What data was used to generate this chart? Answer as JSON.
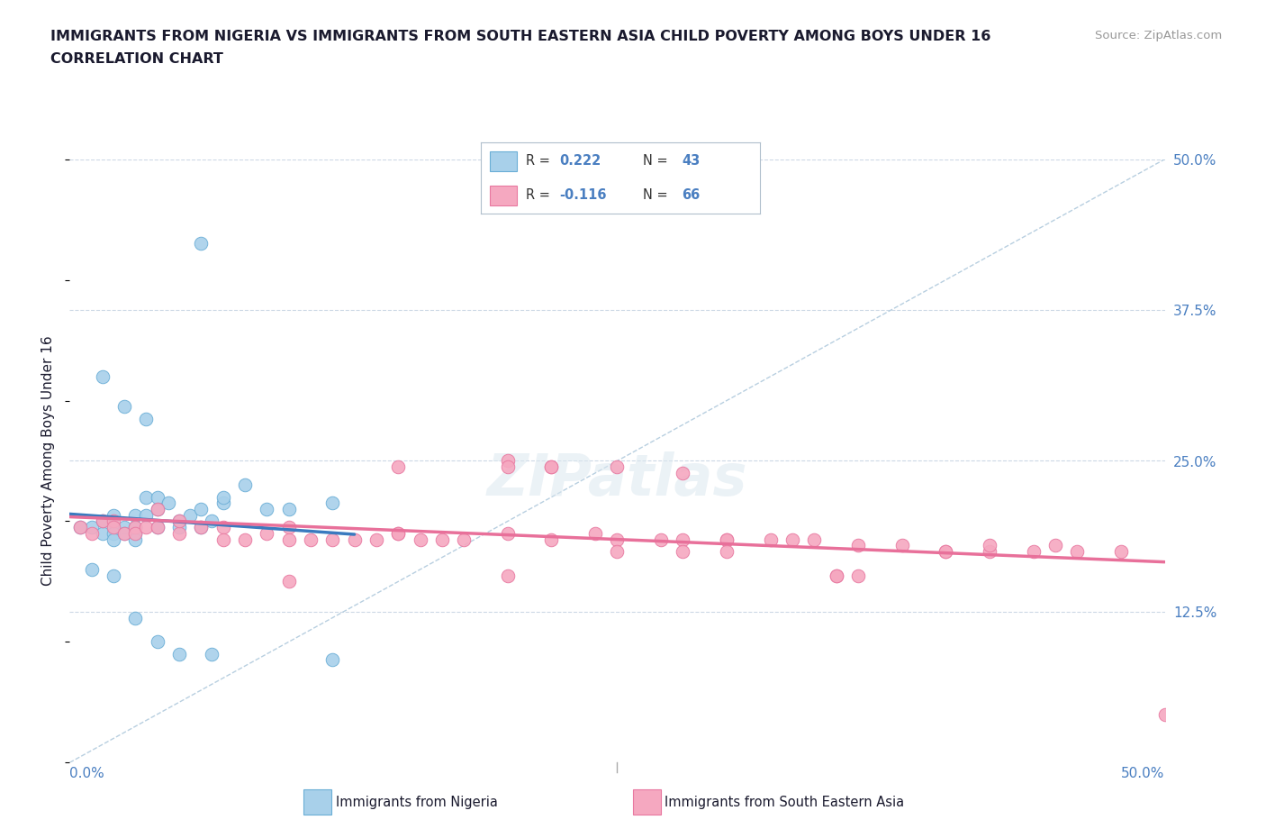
{
  "title1": "IMMIGRANTS FROM NIGERIA VS IMMIGRANTS FROM SOUTH EASTERN ASIA CHILD POVERTY AMONG BOYS UNDER 16",
  "title2": "CORRELATION CHART",
  "ylabel": "Child Poverty Among Boys Under 16",
  "source_text": "Source: ZipAtlas.com",
  "watermark": "ZIPatlas",
  "legend_r1": "R = 0.222",
  "legend_n1": "N = 43",
  "legend_r2": "R = -0.116",
  "legend_n2": "N = 66",
  "color_nigeria": "#a8d0ea",
  "color_sea": "#f5a8c0",
  "color_nigeria_edge": "#6aaed6",
  "color_sea_edge": "#e878a0",
  "color_nigeria_line": "#3a7abf",
  "color_sea_line": "#e8709a",
  "color_diag": "#b8cfe0",
  "color_grid": "#ccd8e5",
  "color_title": "#1a1a2e",
  "color_axis_blue": "#4a7fc1",
  "xlim": [
    0.0,
    0.5
  ],
  "ylim": [
    0.0,
    0.5
  ],
  "ytick_values": [
    0.125,
    0.25,
    0.375,
    0.5
  ],
  "ytick_labels": [
    "12.5%",
    "25.0%",
    "37.5%",
    "50.0%"
  ],
  "nigeria_x": [
    0.005,
    0.01,
    0.015,
    0.015,
    0.02,
    0.02,
    0.02,
    0.02,
    0.025,
    0.025,
    0.03,
    0.03,
    0.03,
    0.03,
    0.035,
    0.035,
    0.04,
    0.04,
    0.04,
    0.045,
    0.05,
    0.05,
    0.055,
    0.06,
    0.06,
    0.065,
    0.07,
    0.07,
    0.08,
    0.09,
    0.1,
    0.12,
    0.01,
    0.02,
    0.03,
    0.04,
    0.05,
    0.015,
    0.025,
    0.035,
    0.065,
    0.12,
    0.06
  ],
  "nigeria_y": [
    0.195,
    0.195,
    0.19,
    0.2,
    0.195,
    0.205,
    0.19,
    0.185,
    0.195,
    0.19,
    0.19,
    0.195,
    0.205,
    0.185,
    0.22,
    0.205,
    0.21,
    0.22,
    0.195,
    0.215,
    0.2,
    0.195,
    0.205,
    0.195,
    0.21,
    0.2,
    0.215,
    0.22,
    0.23,
    0.21,
    0.21,
    0.215,
    0.16,
    0.155,
    0.12,
    0.1,
    0.09,
    0.32,
    0.295,
    0.285,
    0.09,
    0.085,
    0.43
  ],
  "sea_x": [
    0.005,
    0.01,
    0.015,
    0.02,
    0.02,
    0.025,
    0.03,
    0.03,
    0.035,
    0.04,
    0.04,
    0.05,
    0.05,
    0.06,
    0.07,
    0.07,
    0.08,
    0.09,
    0.1,
    0.1,
    0.11,
    0.12,
    0.13,
    0.14,
    0.15,
    0.15,
    0.16,
    0.17,
    0.18,
    0.2,
    0.2,
    0.22,
    0.22,
    0.24,
    0.25,
    0.25,
    0.27,
    0.28,
    0.28,
    0.3,
    0.3,
    0.32,
    0.33,
    0.34,
    0.35,
    0.36,
    0.38,
    0.4,
    0.42,
    0.42,
    0.44,
    0.46,
    0.48,
    0.5,
    0.2,
    0.25,
    0.3,
    0.35,
    0.4,
    0.15,
    0.2,
    0.28,
    0.36,
    0.1,
    0.45,
    0.22
  ],
  "sea_y": [
    0.195,
    0.19,
    0.2,
    0.2,
    0.195,
    0.19,
    0.195,
    0.19,
    0.195,
    0.195,
    0.21,
    0.19,
    0.2,
    0.195,
    0.195,
    0.185,
    0.185,
    0.19,
    0.195,
    0.185,
    0.185,
    0.185,
    0.185,
    0.185,
    0.19,
    0.245,
    0.185,
    0.185,
    0.185,
    0.19,
    0.25,
    0.185,
    0.245,
    0.19,
    0.185,
    0.245,
    0.185,
    0.185,
    0.24,
    0.185,
    0.185,
    0.185,
    0.185,
    0.185,
    0.155,
    0.18,
    0.18,
    0.175,
    0.175,
    0.18,
    0.175,
    0.175,
    0.175,
    0.04,
    0.245,
    0.175,
    0.175,
    0.155,
    0.175,
    0.19,
    0.155,
    0.175,
    0.155,
    0.15,
    0.18,
    0.245
  ]
}
